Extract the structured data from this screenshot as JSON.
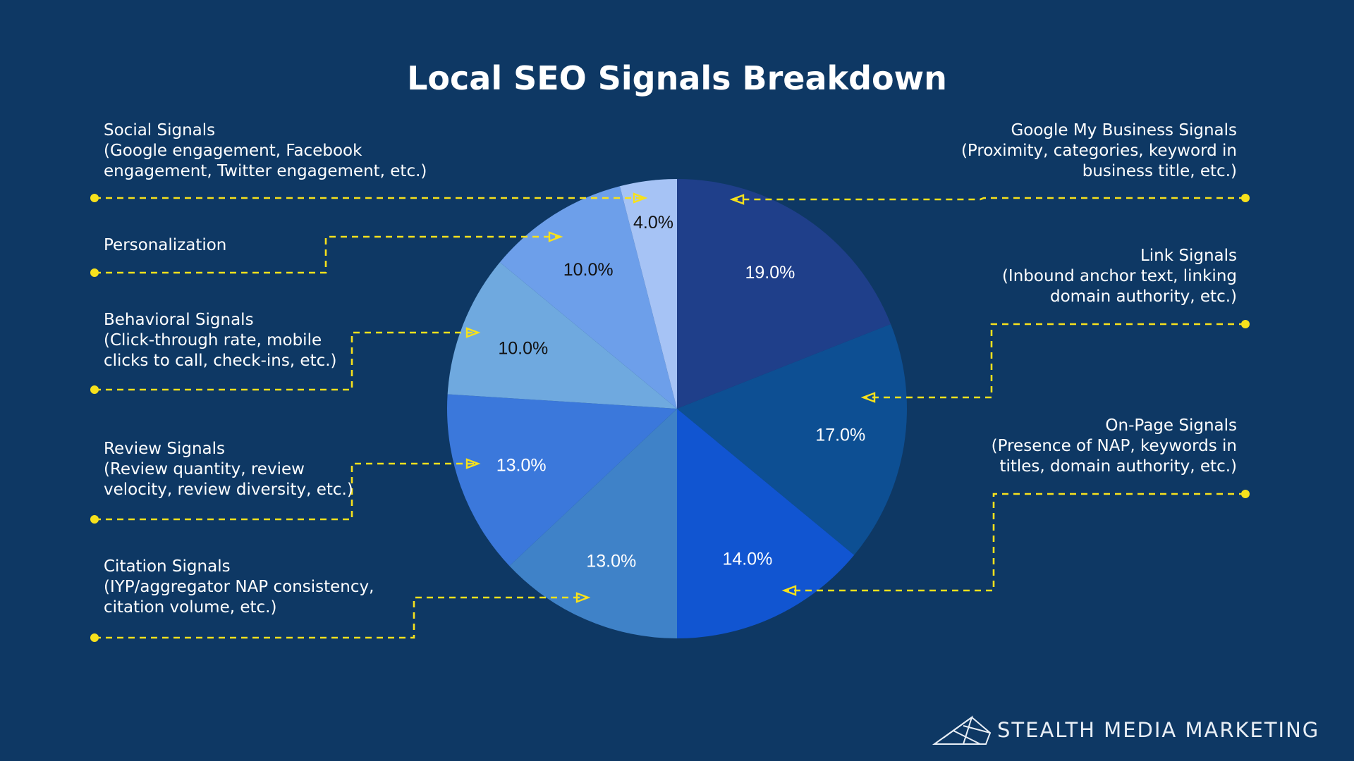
{
  "chart_data": {
    "type": "pie",
    "title": "Local SEO Signals Breakdown",
    "slices": [
      {
        "name": "Google My Business Signals",
        "description": [
          "(Proximity, categories, keyword in",
          "business title, etc.)"
        ],
        "value": 19.0,
        "value_label": "19.0%",
        "color": "#1f3f8a",
        "label_color": "#ffffff"
      },
      {
        "name": "Link Signals",
        "description": [
          "(Inbound anchor text, linking",
          "domain authority, etc.)"
        ],
        "value": 17.0,
        "value_label": "17.0%",
        "color": "#0d4f93",
        "label_color": "#ffffff"
      },
      {
        "name": "On-Page Signals",
        "description": [
          "(Presence of NAP, keywords in",
          "titles, domain authority, etc.)"
        ],
        "value": 14.0,
        "value_label": "14.0%",
        "color": "#1155d1",
        "label_color": "#ffffff"
      },
      {
        "name": "Citation Signals",
        "description": [
          "(IYP/aggregator NAP consistency,",
          "citation volume, etc.)"
        ],
        "value": 13.0,
        "value_label": "13.0%",
        "color": "#3f82c8",
        "label_color": "#ffffff"
      },
      {
        "name": "Review Signals",
        "description": [
          "(Review quantity, review",
          "velocity, review diversity, etc.)"
        ],
        "value": 13.0,
        "value_label": "13.0%",
        "color": "#3b78db",
        "label_color": "#ffffff"
      },
      {
        "name": "Behavioral Signals",
        "description": [
          "(Click-through rate, mobile",
          "clicks to call, check-ins, etc.)"
        ],
        "value": 10.0,
        "value_label": "10.0%",
        "color": "#6fa9df",
        "label_color": "#111111"
      },
      {
        "name": "Personalization",
        "description": [],
        "value": 10.0,
        "value_label": "10.0%",
        "color": "#6d9fea",
        "label_color": "#111111"
      },
      {
        "name": "Social Signals",
        "description": [
          "(Google engagement, Facebook",
          "engagement, Twitter engagement, etc.)"
        ],
        "value": 4.0,
        "value_label": "4.0%",
        "color": "#a6c3f5",
        "label_color": "#111111"
      }
    ],
    "start_angle": "12 o'clock",
    "direction": "clockwise",
    "legend": "callouts",
    "callout_color": "#f7e11c"
  },
  "page": {
    "background": "#0e3864",
    "brand_name": "STEALTH MEDIA MARKETING"
  }
}
